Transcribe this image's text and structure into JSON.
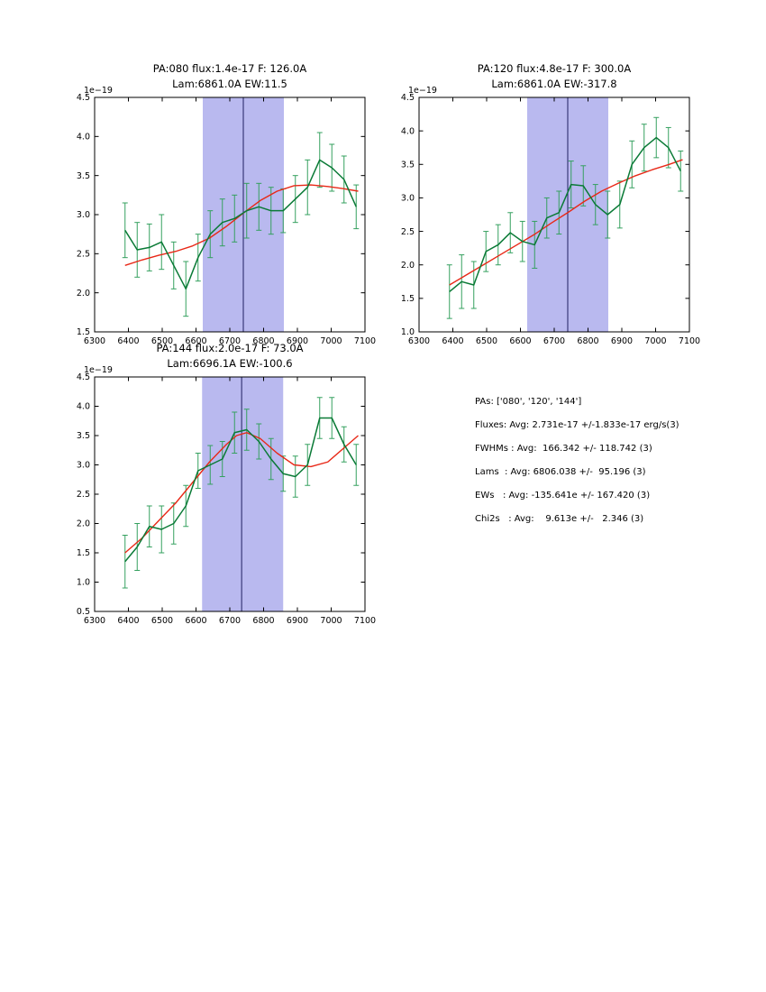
{
  "colors": {
    "band": "#b9b9ef",
    "vline": "#202060",
    "data_line": "#0a7a36",
    "errorbar": "#35a05f",
    "fit_line": "#e82817",
    "axis": "#000000"
  },
  "stats_panel": {
    "lines": [
      "PAs: ['080', '120', '144']",
      "Fluxes: Avg: 2.731e-17 +/-1.833e-17 erg/s(3)",
      "FWHMs : Avg:  166.342 +/- 118.742 (3)",
      "Lams  : Avg: 6806.038 +/-  95.196 (3)",
      "EWs   : Avg: -135.641e +/- 167.420 (3)",
      "Chi2s   : Avg:    9.613e +/-   2.346 (3)"
    ]
  },
  "chart_data": [
    {
      "type": "line",
      "title_line1": "PA:080 flux:1.4e-17 F: 126.0A",
      "title_line2": "Lam:6861.0A EW:11.5",
      "offset_label": "1e−19",
      "xlim": [
        6300,
        7100
      ],
      "ylim": [
        1.5,
        4.5
      ],
      "ytick_step": 0.5,
      "xticks": [
        6300,
        6400,
        6500,
        6600,
        6700,
        6800,
        6900,
        7000,
        7100
      ],
      "band": [
        6620,
        6860
      ],
      "vline": 6740,
      "grid": false,
      "series": [
        {
          "name": "data",
          "x": [
            6390,
            6426,
            6462,
            6498,
            6534,
            6570,
            6606,
            6642,
            6678,
            6714,
            6750,
            6786,
            6822,
            6858,
            6894,
            6930,
            6966,
            7002,
            7038,
            7074
          ],
          "y": [
            2.8,
            2.55,
            2.58,
            2.65,
            2.35,
            2.05,
            2.45,
            2.75,
            2.9,
            2.95,
            3.05,
            3.1,
            3.05,
            3.05,
            3.2,
            3.35,
            3.7,
            3.6,
            3.45,
            3.1
          ],
          "yerr": [
            0.35,
            0.35,
            0.3,
            0.35,
            0.3,
            0.35,
            0.3,
            0.3,
            0.3,
            0.3,
            0.35,
            0.3,
            0.3,
            0.28,
            0.3,
            0.35,
            0.35,
            0.3,
            0.3,
            0.28
          ]
        },
        {
          "name": "fit",
          "x": [
            6390,
            6440,
            6490,
            6540,
            6590,
            6640,
            6690,
            6740,
            6790,
            6840,
            6890,
            6940,
            6990,
            7040,
            7080
          ],
          "y": [
            2.35,
            2.42,
            2.48,
            2.53,
            2.6,
            2.7,
            2.85,
            3.02,
            3.18,
            3.3,
            3.37,
            3.38,
            3.36,
            3.33,
            3.3
          ]
        }
      ]
    },
    {
      "type": "line",
      "title_line1": "PA:120 flux:4.8e-17 F: 300.0A",
      "title_line2": "Lam:6861.0A EW:-317.8",
      "offset_label": "1e−19",
      "xlim": [
        6300,
        7100
      ],
      "ylim": [
        1.0,
        4.5
      ],
      "ytick_step": 0.5,
      "xticks": [
        6300,
        6400,
        6500,
        6600,
        6700,
        6800,
        6900,
        7000,
        7100
      ],
      "band": [
        6620,
        6860
      ],
      "vline": 6740,
      "grid": false,
      "series": [
        {
          "name": "data",
          "x": [
            6390,
            6426,
            6462,
            6498,
            6534,
            6570,
            6606,
            6642,
            6678,
            6714,
            6750,
            6786,
            6822,
            6858,
            6894,
            6930,
            6966,
            7002,
            7038,
            7074
          ],
          "y": [
            1.6,
            1.75,
            1.7,
            2.2,
            2.3,
            2.48,
            2.35,
            2.3,
            2.7,
            2.78,
            3.2,
            3.18,
            2.9,
            2.75,
            2.9,
            3.5,
            3.75,
            3.9,
            3.75,
            3.4
          ],
          "yerr": [
            0.4,
            0.4,
            0.35,
            0.3,
            0.3,
            0.3,
            0.3,
            0.35,
            0.3,
            0.32,
            0.35,
            0.3,
            0.3,
            0.35,
            0.35,
            0.35,
            0.35,
            0.3,
            0.3,
            0.3
          ]
        },
        {
          "name": "fit",
          "x": [
            6390,
            6440,
            6490,
            6540,
            6590,
            6640,
            6690,
            6740,
            6790,
            6840,
            6890,
            6940,
            6990,
            7040,
            7080
          ],
          "y": [
            1.7,
            1.85,
            2.0,
            2.15,
            2.3,
            2.45,
            2.62,
            2.78,
            2.95,
            3.1,
            3.22,
            3.33,
            3.42,
            3.5,
            3.57
          ]
        }
      ]
    },
    {
      "type": "line",
      "title_line1": "PA:144 flux:2.0e-17 F: 73.0A",
      "title_line2": "Lam:6696.1A EW:-100.6",
      "offset_label": "1e−19",
      "xlim": [
        6300,
        7100
      ],
      "ylim": [
        0.5,
        4.5
      ],
      "ytick_step": 0.5,
      "xticks": [
        6300,
        6400,
        6500,
        6600,
        6700,
        6800,
        6900,
        7000,
        7100
      ],
      "band": [
        6618,
        6858
      ],
      "vline": 6735,
      "grid": false,
      "series": [
        {
          "name": "data",
          "x": [
            6390,
            6426,
            6462,
            6498,
            6534,
            6570,
            6606,
            6642,
            6678,
            6714,
            6750,
            6786,
            6822,
            6858,
            6894,
            6930,
            6966,
            7002,
            7038,
            7074
          ],
          "y": [
            1.35,
            1.6,
            1.95,
            1.9,
            2.0,
            2.3,
            2.9,
            3.0,
            3.1,
            3.55,
            3.6,
            3.4,
            3.1,
            2.85,
            2.8,
            3.0,
            3.8,
            3.8,
            3.35,
            3.0
          ],
          "yerr": [
            0.45,
            0.4,
            0.35,
            0.4,
            0.35,
            0.35,
            0.3,
            0.33,
            0.3,
            0.35,
            0.35,
            0.3,
            0.35,
            0.3,
            0.35,
            0.35,
            0.35,
            0.35,
            0.3,
            0.35
          ]
        },
        {
          "name": "fit",
          "x": [
            6390,
            6440,
            6490,
            6540,
            6590,
            6640,
            6690,
            6720,
            6750,
            6790,
            6840,
            6890,
            6940,
            6990,
            7040,
            7080
          ],
          "y": [
            1.5,
            1.75,
            2.05,
            2.35,
            2.7,
            3.05,
            3.35,
            3.5,
            3.55,
            3.45,
            3.2,
            3.0,
            2.97,
            3.05,
            3.3,
            3.5
          ]
        }
      ]
    }
  ]
}
